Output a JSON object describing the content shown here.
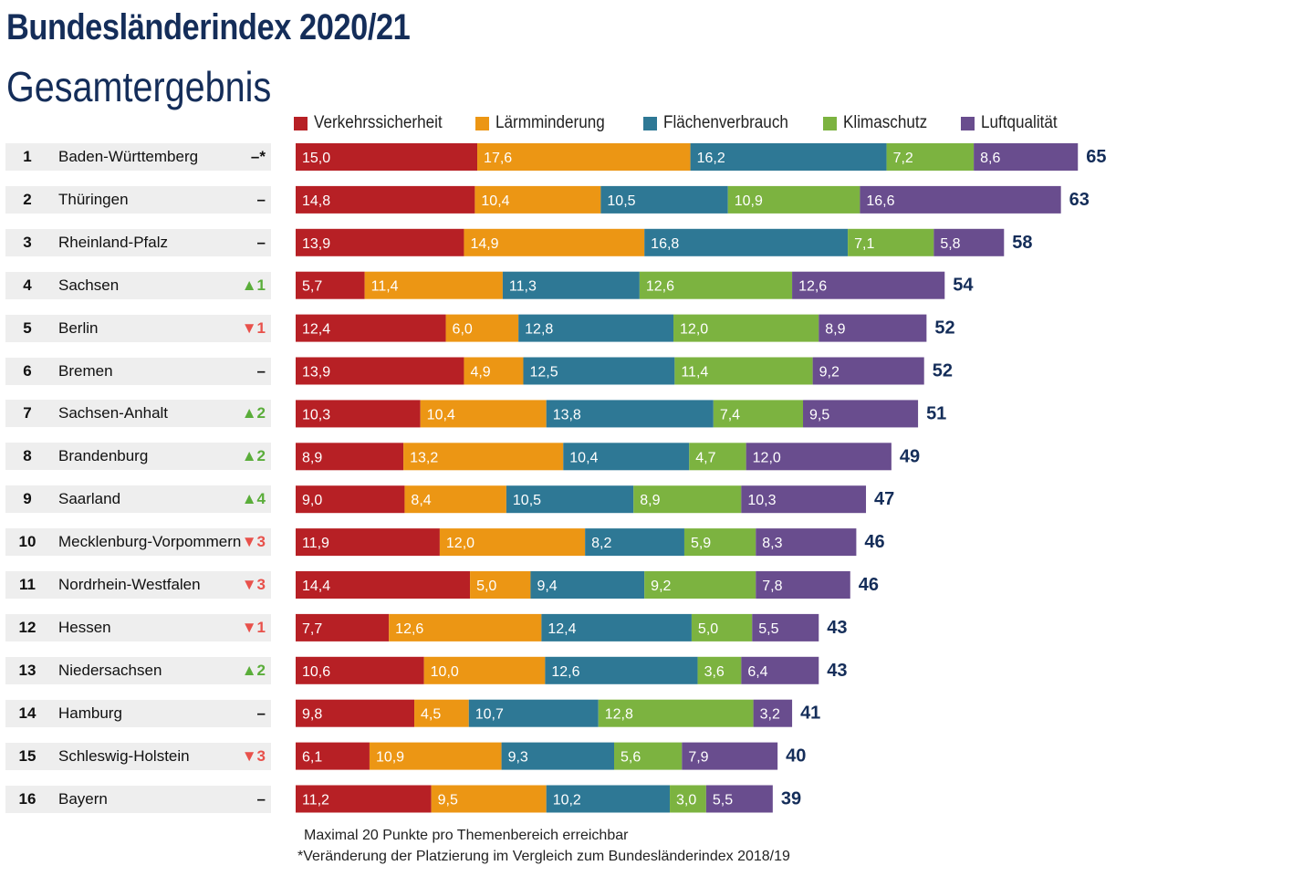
{
  "header": {
    "title": "Bundesländerindex 2020/21",
    "subtitle": "Gesamtergebnis"
  },
  "footnotes": {
    "line1": "Maximal 20 Punkte pro Themenbereich erreichbar",
    "line2": "*Veränderung der Platzierung im Vergleich zum Bundesländerindex 2018/19"
  },
  "colors": {
    "Verkehrssicherheit": "#b72025",
    "Lärmminderung": "#ec9614",
    "Flächenverbrauch": "#2e7895",
    "Klimaschutz": "#7cb340",
    "Luftqualität": "#694d8e",
    "total": "#142d59"
  },
  "chart_data": {
    "type": "bar",
    "orientation": "horizontal",
    "stacked": true,
    "legend_position": "top",
    "grid": false,
    "xlim": [
      0,
      65
    ],
    "rank_labels": [
      "1",
      "2",
      "3",
      "4",
      "5",
      "6",
      "7",
      "8",
      "9",
      "10",
      "11",
      "12",
      "13",
      "14",
      "15",
      "16"
    ],
    "categories": [
      "Baden-Württemberg",
      "Thüringen",
      "Rheinland-Pfalz",
      "Sachsen",
      "Berlin",
      "Bremen",
      "Sachsen-Anhalt",
      "Brandenburg",
      "Saarland",
      "Mecklenburg-Vorpommern",
      "Nordrhein-Westfalen",
      "Hessen",
      "Niedersachsen",
      "Hamburg",
      "Schleswig-Holstein",
      "Bayern"
    ],
    "rank_change": [
      "–*",
      "–",
      "–",
      "▲1",
      "▼1",
      "–",
      "▲2",
      "▲2",
      "▲4",
      "▼3",
      "▼3",
      "▼1",
      "▲2",
      "–",
      "▼3",
      "–"
    ],
    "rank_change_dir": [
      "same",
      "same",
      "same",
      "up",
      "down",
      "same",
      "up",
      "up",
      "up",
      "down",
      "down",
      "down",
      "up",
      "same",
      "down",
      "same"
    ],
    "series": [
      {
        "name": "Verkehrssicherheit",
        "values": [
          15.0,
          14.8,
          13.9,
          5.7,
          12.4,
          13.9,
          10.3,
          8.9,
          9.0,
          11.9,
          14.4,
          7.7,
          10.6,
          9.8,
          6.1,
          11.2
        ],
        "labels": [
          "15,0",
          "14,8",
          "13,9",
          "5,7",
          "12,4",
          "13,9",
          "10,3",
          "8,9",
          "9,0",
          "11,9",
          "14,4",
          "7,7",
          "10,6",
          "9,8",
          "6,1",
          "11,2"
        ]
      },
      {
        "name": "Lärmminderung",
        "values": [
          17.6,
          10.4,
          14.9,
          11.4,
          6.0,
          4.9,
          10.4,
          13.2,
          8.4,
          12.0,
          5.0,
          12.6,
          10.0,
          4.5,
          10.9,
          9.5
        ],
        "labels": [
          "17,6",
          "10,4",
          "14,9",
          "11,4",
          "6,0",
          "4,9",
          "10,4",
          "13,2",
          "8,4",
          "12,0",
          "5,0",
          "12,6",
          "10,0",
          "4,5",
          "10,9",
          "9,5"
        ]
      },
      {
        "name": "Flächenverbrauch",
        "values": [
          16.2,
          10.5,
          16.8,
          11.3,
          12.8,
          12.5,
          13.8,
          10.4,
          10.5,
          8.2,
          9.4,
          12.4,
          12.6,
          10.7,
          9.3,
          10.2
        ],
        "labels": [
          "16,2",
          "10,5",
          "16,8",
          "11,3",
          "12,8",
          "12,5",
          "13,8",
          "10,4",
          "10,5",
          "8,2",
          "9,4",
          "12,4",
          "12,6",
          "10,7",
          "9,3",
          "10,2"
        ]
      },
      {
        "name": "Klimaschutz",
        "values": [
          7.2,
          10.9,
          7.1,
          12.6,
          12.0,
          11.4,
          7.4,
          4.7,
          8.9,
          5.9,
          9.2,
          5.0,
          3.6,
          12.8,
          5.6,
          3.0
        ],
        "labels": [
          "7,2",
          "10,9",
          "7,1",
          "12,6",
          "12,0",
          "11,4",
          "7,4",
          "4,7",
          "8,9",
          "5,9",
          "9,2",
          "5,0",
          "3,6",
          "12,8",
          "5,6",
          "3,0"
        ]
      },
      {
        "name": "Luftqualität",
        "values": [
          8.6,
          16.6,
          5.8,
          12.6,
          8.9,
          9.2,
          9.5,
          12.0,
          10.3,
          8.3,
          7.8,
          5.5,
          6.4,
          3.2,
          7.9,
          5.5
        ],
        "labels": [
          "8,6",
          "16,6",
          "5,8",
          "12,6",
          "8,9",
          "9,2",
          "9,5",
          "12,0",
          "10,3",
          "8,3",
          "7,8",
          "5,5",
          "6,4",
          "3,2",
          "7,9",
          "5,5"
        ]
      }
    ],
    "totals": [
      65,
      63,
      58,
      54,
      52,
      52,
      51,
      49,
      47,
      46,
      46,
      43,
      43,
      41,
      40,
      39
    ]
  }
}
